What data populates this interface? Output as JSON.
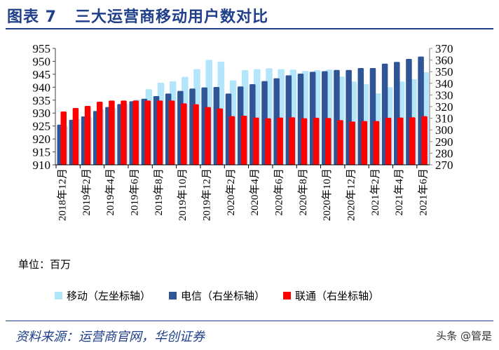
{
  "title": "图表 7   三大运营商移动用户数对比",
  "unit_label": "单位：百万",
  "source": "资料来源：运营商官网，华创证券",
  "watermark": "头条 @管是",
  "chart_data": {
    "type": "bar",
    "title": "",
    "categories": [
      "2018年12月",
      "2019年1月",
      "2019年2月",
      "2019年3月",
      "2019年4月",
      "2019年5月",
      "2019年6月",
      "2019年7月",
      "2019年8月",
      "2019年9月",
      "2019年10月",
      "2019年11月",
      "2019年12月",
      "2020年1月",
      "2020年2月",
      "2020年3月",
      "2020年4月",
      "2020年5月",
      "2020年6月",
      "2020年7月",
      "2020年8月",
      "2020年9月",
      "2020年10月",
      "2020年11月",
      "2020年12月",
      "2021年1月",
      "2021年2月",
      "2021年3月",
      "2021年4月",
      "2021年5月",
      "2021年6月"
    ],
    "tick_labels": [
      "2018年12月",
      "2019年2月",
      "2019年4月",
      "2019年6月",
      "2019年8月",
      "2019年10月",
      "2019年12月",
      "2020年2月",
      "2020年4月",
      "2020年6月",
      "2020年8月",
      "2020年10月",
      "2020年12月",
      "2021年2月",
      "2021年4月",
      "2021年6月"
    ],
    "left_axis": {
      "ylim": [
        910,
        955
      ],
      "ticks": [
        910,
        915,
        920,
        925,
        930,
        935,
        940,
        945,
        950,
        955
      ]
    },
    "right_axis": {
      "ylim": [
        270,
        370
      ],
      "ticks": [
        270,
        280,
        290,
        300,
        310,
        320,
        330,
        340,
        350,
        360,
        370
      ]
    },
    "legend_position": "bottom",
    "series": [
      {
        "name": "移动（左坐标轴）",
        "axis": "left",
        "color": "#b4e6fb",
        "values": [
          925.0,
          927.8,
          928.4,
          931.5,
          932.0,
          933.5,
          935.2,
          939.2,
          941.7,
          942.3,
          944.0,
          947.0,
          950.6,
          949.9,
          942.6,
          946.6,
          947.0,
          947.3,
          947.0,
          946.8,
          946.3,
          946.6,
          946.8,
          944.1,
          942.2,
          941.2,
          937.6,
          940.0,
          942.2,
          943.1,
          945.8
        ]
      },
      {
        "name": "电信（右坐标轴）",
        "axis": "right",
        "color": "#2f5597",
        "values": [
          304.5,
          308.7,
          311.6,
          316.2,
          319.6,
          322.2,
          324.6,
          326.8,
          329.0,
          331.2,
          333.5,
          335.5,
          336.5,
          336.9,
          331.2,
          337.3,
          339.3,
          341.9,
          344.3,
          346.9,
          348.3,
          349.9,
          350.4,
          351.5,
          351.5,
          353.1,
          353.1,
          356.9,
          358.4,
          361.0,
          363.0
        ]
      },
      {
        "name": "联通（右坐标轴）",
        "axis": "right",
        "color": "#ff0000",
        "values": [
          315.8,
          318.8,
          320.6,
          324.2,
          325.2,
          325.2,
          325.2,
          325.2,
          325.2,
          325.2,
          322.8,
          322.0,
          319.6,
          318.4,
          311.8,
          312.2,
          310.6,
          310.0,
          310.6,
          310.8,
          310.0,
          310.4,
          310.2,
          308.4,
          307.2,
          307.6,
          307.6,
          310.4,
          310.6,
          310.8,
          311.8
        ]
      }
    ]
  }
}
